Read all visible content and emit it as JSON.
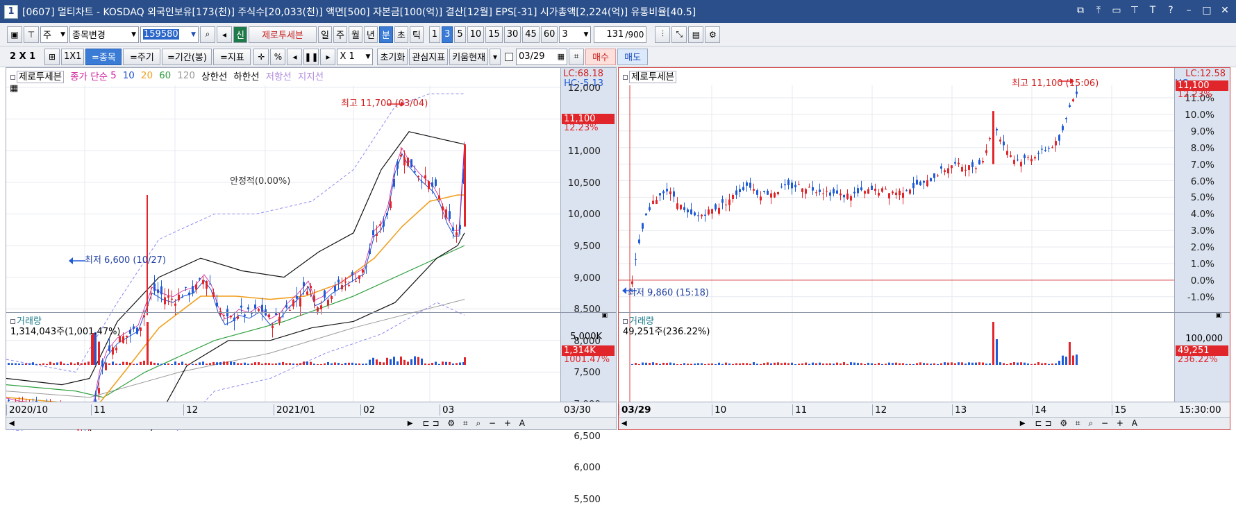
{
  "window": {
    "num": "1",
    "title": "[0607] 멀티차트 - KOSDAQ 외국인보유[173(천)] 주식수[20,033(천)] 액면[500] 자본금[100(억)] 결산[12월] EPS[-31] 시가총액[2,224(억)] 유통비율[40.5]"
  },
  "toolbar1": {
    "stock_prefix": "주",
    "stock_change": "종목변경",
    "code": "159580",
    "zero_tab": "제로투세븐",
    "new_badge": "신",
    "periods": [
      "일",
      "주",
      "월",
      "년",
      "분",
      "초",
      "틱"
    ],
    "active_period": "분",
    "minute_opts": [
      "1",
      "3",
      "5",
      "10",
      "15",
      "30",
      "45",
      "60"
    ],
    "active_minute": "3",
    "min_select": "3",
    "count": "131",
    "count_max": "/900"
  },
  "toolbar2": {
    "layout": "2 X 1",
    "one_by_one": "1X1",
    "btn_stock": "=종목",
    "btn_period": "=주기",
    "btn_range": "=기간(봉)",
    "btn_indicator": "=지표",
    "percent": "%",
    "xmul": "X 1",
    "reset": "초기화",
    "interest": "관심지표",
    "kiwoom": "키움현재",
    "date": "03/29",
    "buy": "매수",
    "sell": "매도"
  },
  "left_chart": {
    "legend": {
      "name": "제로투세븐",
      "close": "종가 단순",
      "ma": [
        "5",
        "10",
        "20",
        "60",
        "120"
      ],
      "upper": "상한선",
      "lower": "하한선",
      "resist": "저항선",
      "support": "지지선"
    },
    "lc": "LC:68.18",
    "hc": "HC:-5.13",
    "price_ticks": [
      "12,000",
      "11,500",
      "11,000",
      "10,500",
      "10,000",
      "9,500",
      "9,000",
      "8,500",
      "8,000",
      "7,500",
      "7,000",
      "6,500",
      "6,000",
      "5,500"
    ],
    "cur_price": "11,100",
    "cur_pct": "12.23%",
    "high_label": "최고 11,700 (03/04)",
    "low_label": "최저 6,600 (10/27)",
    "stable_label": "안정적(0.00%)",
    "vol_title": "거래량",
    "vol_value": "1,314,043주(1,001.47%)",
    "vol_tick": "5,000K",
    "vol_tag": "1,314K",
    "vol_pct": "1001.47%",
    "x_ticks": [
      "2020/10",
      "11",
      "12",
      "2021/01",
      "02",
      "03"
    ],
    "x_end": "03/30"
  },
  "right_chart": {
    "legend": {
      "name": "제로투세븐"
    },
    "lc": "LC:12.58",
    "hc": "HC",
    "pct_ticks": [
      "11.0%",
      "10.0%",
      "9.0%",
      "8.0%",
      "7.0%",
      "6.0%",
      "5.0%",
      "4.0%",
      "3.0%",
      "2.0%",
      "1.0%",
      "0.0%",
      "-1.0%"
    ],
    "cur_price": "11,100",
    "cur_pct": "12.23%",
    "high_label": "최고 11,100 (15:06)",
    "low_label": "최저 9,860 (15:18)",
    "vol_title": "거래량",
    "vol_value": "49,251주(236.22%)",
    "vol_tick": "100,000",
    "vol_tag": "49,251",
    "vol_pct": "236.22%",
    "x_ticks": [
      "03/29",
      "10",
      "11",
      "12",
      "13",
      "14",
      "15"
    ],
    "x_end": "15:30:00"
  },
  "colors": {
    "up": "#e0262a",
    "down": "#1f5bd6",
    "ma5": "#2050d0",
    "ma20": "#f0a020",
    "ma60": "#30a040",
    "ma120": "#999999",
    "band": "#111111",
    "dash": "#8a8af0"
  }
}
